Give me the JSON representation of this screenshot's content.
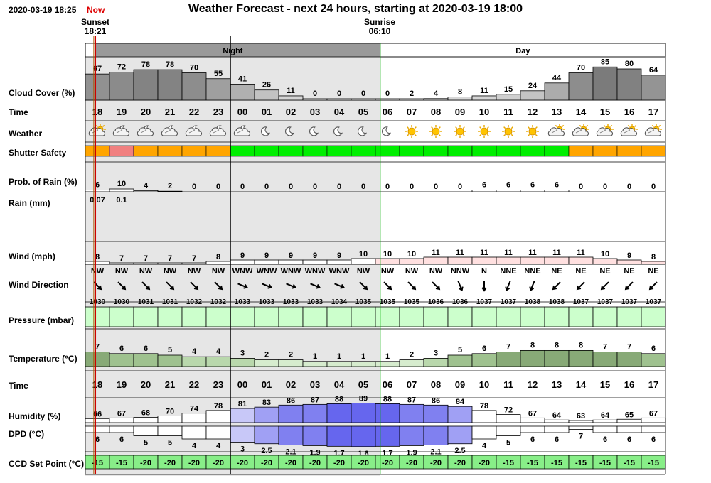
{
  "header": {
    "timestamp": "2020-03-19 18:25",
    "now_label": "Now",
    "title": "Weather Forecast - next 24 hours, starting at 2020-03-19 18:00",
    "sunset_label": "Sunset",
    "sunset_time": "18:21",
    "sunrise_label": "Sunrise",
    "sunrise_time": "06:10",
    "night_label": "Night",
    "day_label": "Day"
  },
  "labels": {
    "cloud": "Cloud Cover (%)",
    "time": "Time",
    "weather": "Weather",
    "shutter": "Shutter Safety",
    "prob": "Prob. of Rain (%)",
    "rain": "Rain (mm)",
    "wind": "Wind (mph)",
    "winddir": "Wind Direction",
    "pressure": "Pressure (mbar)",
    "temp": "Temperature (°C)",
    "time2": "Time",
    "humidity": "Humidity (%)",
    "dpd": "DPD (°C)",
    "ccd": "CCD Set Point (°C)"
  },
  "chart_data": {
    "type": "table",
    "hours": [
      "18",
      "19",
      "20",
      "21",
      "22",
      "23",
      "00",
      "01",
      "02",
      "03",
      "04",
      "05",
      "06",
      "07",
      "08",
      "09",
      "10",
      "11",
      "12",
      "13",
      "14",
      "15",
      "16",
      "17"
    ],
    "cloud_cover": [
      67,
      72,
      78,
      78,
      70,
      55,
      41,
      26,
      11,
      0,
      0,
      0,
      0,
      2,
      4,
      8,
      11,
      15,
      24,
      44,
      70,
      85,
      80,
      64
    ],
    "weather_icons": [
      "partly-cloudy-day",
      "partly-cloudy-night",
      "partly-cloudy-night",
      "partly-cloudy-night",
      "partly-cloudy-night",
      "partly-cloudy-night",
      "partly-cloudy-night",
      "moon",
      "moon",
      "moon",
      "moon",
      "moon",
      "moon",
      "sun",
      "sun",
      "sun",
      "sun",
      "sun",
      "sun",
      "partly-cloudy-day",
      "partly-cloudy-day",
      "partly-cloudy-day",
      "partly-cloudy-day",
      "partly-cloudy-day"
    ],
    "shutter_safety": [
      "caution",
      "unsafe",
      "caution",
      "caution",
      "caution",
      "caution",
      "safe",
      "safe",
      "safe",
      "safe",
      "safe",
      "safe",
      "safe",
      "safe",
      "safe",
      "safe",
      "safe",
      "safe",
      "safe",
      "safe",
      "caution",
      "caution",
      "caution",
      "caution"
    ],
    "shutter_colors": {
      "safe": "#00ee00",
      "caution": "#ffa500",
      "unsafe": "#f08080"
    },
    "prob_rain": [
      6,
      10,
      4,
      2,
      0,
      0,
      0,
      0,
      0,
      0,
      0,
      0,
      0,
      0,
      0,
      0,
      6,
      6,
      6,
      6,
      0,
      0,
      0,
      0
    ],
    "rain_mm": [
      {
        "hour": "18",
        "value": "0.07"
      },
      {
        "hour": "19",
        "value": "0.1"
      }
    ],
    "wind_mph": [
      8,
      7,
      7,
      7,
      7,
      8,
      9,
      9,
      9,
      9,
      9,
      10,
      10,
      10,
      11,
      11,
      11,
      11,
      11,
      11,
      11,
      10,
      9,
      8
    ],
    "wind_dir": [
      "NW",
      "NW",
      "NW",
      "NW",
      "NW",
      "NW",
      "WNW",
      "WNW",
      "WNW",
      "WNW",
      "WNW",
      "NW",
      "NW",
      "NW",
      "NW",
      "NNW",
      "N",
      "NNE",
      "NNE",
      "NE",
      "NE",
      "NE",
      "NE",
      "NE"
    ],
    "pressure_mbar": [
      1030,
      1030,
      1031,
      1031,
      1032,
      1032,
      1033,
      1033,
      1033,
      1033,
      1034,
      1035,
      1035,
      1035,
      1036,
      1036,
      1037,
      1037,
      1038,
      1038,
      1037,
      1037,
      1037,
      1037
    ],
    "temperature_c": [
      7,
      6,
      6,
      5,
      4,
      4,
      3,
      2,
      2,
      1,
      1,
      1,
      1,
      2,
      3,
      5,
      6,
      7,
      8,
      8,
      8,
      7,
      7,
      6
    ],
    "humidity_pct": [
      66,
      67,
      68,
      70,
      74,
      78,
      81,
      83,
      86,
      87,
      88,
      89,
      88,
      87,
      86,
      84,
      78,
      72,
      67,
      64,
      63,
      64,
      65,
      67
    ],
    "dpd_c": [
      "6",
      "6",
      "5",
      "5",
      "4",
      "4",
      "3",
      "2.5",
      "2.1",
      "1.9",
      "1.7",
      "1.6",
      "1.7",
      "1.9",
      "2.1",
      "2.5",
      "4",
      "5",
      "6",
      "6",
      "7",
      "6",
      "6",
      "6"
    ],
    "ccd_set_point_c": [
      -15,
      -15,
      -20,
      -20,
      -20,
      -20,
      -20,
      -20,
      -20,
      -20,
      -20,
      -20,
      -20,
      -20,
      -20,
      -20,
      -20,
      -15,
      -15,
      -15,
      -15,
      -15,
      -15,
      -15
    ]
  }
}
